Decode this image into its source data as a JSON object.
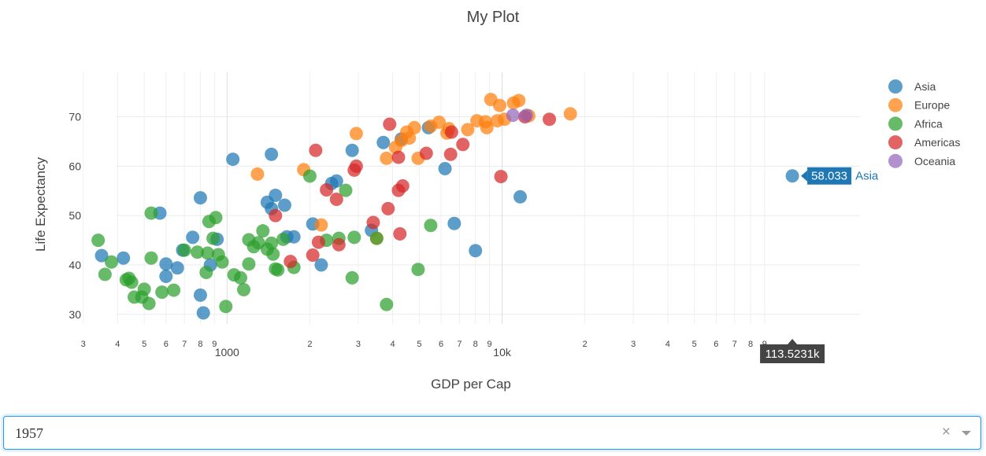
{
  "chart_data": {
    "type": "scatter",
    "title": "My Plot",
    "xlabel": "GDP per Cap",
    "ylabel": "Life Expectancy",
    "x_scale": "log",
    "xlim": [
      250,
      200000
    ],
    "ylim": [
      26,
      79
    ],
    "yticks": [
      30,
      40,
      50,
      60,
      70
    ],
    "xtick_labels": [
      {
        "value": 300,
        "label": "3"
      },
      {
        "value": 400,
        "label": "4"
      },
      {
        "value": 500,
        "label": "5"
      },
      {
        "value": 600,
        "label": "6"
      },
      {
        "value": 700,
        "label": "7"
      },
      {
        "value": 800,
        "label": "8"
      },
      {
        "value": 900,
        "label": "9"
      },
      {
        "value": 1000,
        "label": "1000"
      },
      {
        "value": 2000,
        "label": "2"
      },
      {
        "value": 3000,
        "label": "3"
      },
      {
        "value": 4000,
        "label": "4"
      },
      {
        "value": 5000,
        "label": "5"
      },
      {
        "value": 6000,
        "label": "6"
      },
      {
        "value": 7000,
        "label": "7"
      },
      {
        "value": 8000,
        "label": "8"
      },
      {
        "value": 9000,
        "label": "9"
      },
      {
        "value": 10000,
        "label": "10k"
      },
      {
        "value": 20000,
        "label": "2"
      },
      {
        "value": 30000,
        "label": "3"
      },
      {
        "value": 40000,
        "label": "4"
      },
      {
        "value": 50000,
        "label": "5"
      },
      {
        "value": 60000,
        "label": "6"
      },
      {
        "value": 70000,
        "label": "7"
      },
      {
        "value": 80000,
        "label": "8"
      },
      {
        "value": 90000,
        "label": "9"
      }
    ],
    "legend_position": "top-right",
    "grid": true,
    "series": [
      {
        "name": "Asia",
        "color": "#1f77b4",
        "points": [
          [
            113523,
            58.033
          ],
          [
            11635,
            53.8
          ],
          [
            8000,
            42.9
          ],
          [
            6700,
            48.4
          ],
          [
            6200,
            59.5
          ],
          [
            5400,
            67.8
          ],
          [
            4300,
            65.5
          ],
          [
            3700,
            64.8
          ],
          [
            2850,
            63.2
          ],
          [
            2500,
            57.0
          ],
          [
            2400,
            56.5
          ],
          [
            3350,
            47.0
          ],
          [
            2200,
            40.0
          ],
          [
            2050,
            48.3
          ],
          [
            1750,
            45.7
          ],
          [
            1650,
            45.7
          ],
          [
            1620,
            52.1
          ],
          [
            1500,
            54.1
          ],
          [
            1450,
            51.4
          ],
          [
            1400,
            52.7
          ],
          [
            1450,
            62.4
          ],
          [
            1050,
            61.4
          ],
          [
            800,
            53.6
          ],
          [
            750,
            45.6
          ],
          [
            690,
            43.0
          ],
          [
            660,
            39.4
          ],
          [
            600,
            40.2
          ],
          [
            600,
            37.7
          ],
          [
            570,
            50.5
          ],
          [
            420,
            41.4
          ],
          [
            350,
            41.9
          ],
          [
            800,
            33.9
          ],
          [
            820,
            30.3
          ],
          [
            870,
            40.0
          ],
          [
            920,
            45.2
          ]
        ]
      },
      {
        "name": "Europe",
        "color": "#ff7f0e",
        "points": [
          [
            17700,
            70.6
          ],
          [
            12500,
            70.2
          ],
          [
            11500,
            73.3
          ],
          [
            11000,
            72.8
          ],
          [
            9800,
            72.3
          ],
          [
            9100,
            73.5
          ],
          [
            10200,
            69.5
          ],
          [
            9600,
            69.2
          ],
          [
            8700,
            69.0
          ],
          [
            8100,
            69.2
          ],
          [
            8800,
            67.8
          ],
          [
            7500,
            67.4
          ],
          [
            6400,
            67.6
          ],
          [
            5900,
            68.9
          ],
          [
            6300,
            66.7
          ],
          [
            4800,
            67.8
          ],
          [
            4500,
            66.9
          ],
          [
            5500,
            68.1
          ],
          [
            4600,
            65.7
          ],
          [
            4300,
            65.2
          ],
          [
            4100,
            63.8
          ],
          [
            4950,
            61.6
          ],
          [
            3800,
            61.6
          ],
          [
            2950,
            66.6
          ],
          [
            1900,
            59.3
          ],
          [
            1290,
            58.4
          ],
          [
            2200,
            48.1
          ],
          [
            3500,
            45.4
          ]
        ]
      },
      {
        "name": "Africa",
        "color": "#2ca02c",
        "points": [
          [
            5500,
            48.0
          ],
          [
            4950,
            39.1
          ],
          [
            3800,
            32.0
          ],
          [
            2900,
            45.6
          ],
          [
            2850,
            37.4
          ],
          [
            2700,
            55.1
          ],
          [
            2300,
            45.0
          ],
          [
            2550,
            45.4
          ],
          [
            2000,
            58.0
          ],
          [
            3500,
            45.4
          ],
          [
            1750,
            39.5
          ],
          [
            1600,
            45.2
          ],
          [
            1530,
            39.0
          ],
          [
            1500,
            39.2
          ],
          [
            1470,
            42.2
          ],
          [
            1450,
            44.4
          ],
          [
            1400,
            43.2
          ],
          [
            1350,
            46.9
          ],
          [
            1250,
            43.7
          ],
          [
            1200,
            40.2
          ],
          [
            1150,
            35.0
          ],
          [
            1120,
            37.4
          ],
          [
            1060,
            38.0
          ],
          [
            990,
            31.6
          ],
          [
            960,
            40.6
          ],
          [
            930,
            42.1
          ],
          [
            890,
            45.4
          ],
          [
            910,
            49.6
          ],
          [
            860,
            48.8
          ],
          [
            850,
            42.4
          ],
          [
            840,
            38.5
          ],
          [
            780,
            42.6
          ],
          [
            700,
            43.0
          ],
          [
            640,
            34.9
          ],
          [
            580,
            34.5
          ],
          [
            530,
            41.4
          ],
          [
            500,
            35.1
          ],
          [
            490,
            33.5
          ],
          [
            450,
            36.5
          ],
          [
            460,
            33.5
          ],
          [
            440,
            37.3
          ],
          [
            430,
            37.0
          ],
          [
            380,
            40.6
          ],
          [
            360,
            38.1
          ],
          [
            340,
            45.0
          ],
          [
            530,
            50.5
          ],
          [
            520,
            32.2
          ],
          [
            1200,
            45.1
          ],
          [
            1300,
            44.5
          ]
        ]
      },
      {
        "name": "Americas",
        "color": "#d62728",
        "points": [
          [
            14850,
            69.5
          ],
          [
            12100,
            70.0
          ],
          [
            9900,
            57.9
          ],
          [
            7200,
            64.4
          ],
          [
            6550,
            66.9
          ],
          [
            6500,
            62.4
          ],
          [
            5300,
            62.6
          ],
          [
            4200,
            61.8
          ],
          [
            3900,
            68.5
          ],
          [
            3850,
            51.4
          ],
          [
            4200,
            55.1
          ],
          [
            4350,
            56.0
          ],
          [
            4250,
            46.3
          ],
          [
            3400,
            48.6
          ],
          [
            2950,
            60.0
          ],
          [
            2900,
            59.2
          ],
          [
            2500,
            53.3
          ],
          [
            2300,
            55.2
          ],
          [
            2150,
            44.6
          ],
          [
            2550,
            44.1
          ],
          [
            2050,
            42.0
          ],
          [
            1500,
            50.0
          ],
          [
            1700,
            40.7
          ],
          [
            2100,
            63.2
          ]
        ]
      },
      {
        "name": "Oceania",
        "color": "#9467bd",
        "points": [
          [
            10950,
            70.3
          ],
          [
            12250,
            70.3
          ]
        ]
      }
    ],
    "hover": {
      "series": "Asia",
      "y_label": "58.033",
      "x_label": "113.5231k"
    }
  },
  "dropdown": {
    "value": "1957"
  }
}
